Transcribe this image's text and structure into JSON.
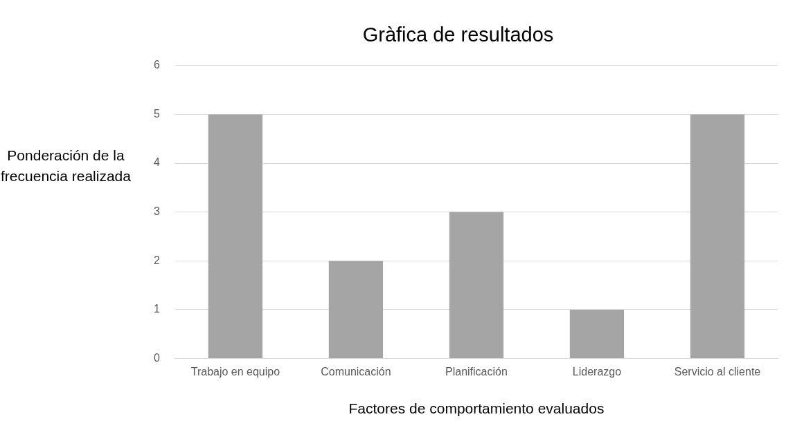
{
  "chart_data": {
    "type": "bar",
    "title": "Gràfica de resultados",
    "xlabel": "Factores de comportamiento evaluados",
    "ylabel": "Ponderación de la frecuencia realizada",
    "categories": [
      "Trabajo en equipo",
      "Comunicación",
      "Planificación",
      "Liderazgo",
      "Servicio al cliente"
    ],
    "values": [
      5,
      2,
      3,
      1,
      5
    ],
    "color": "#a5a5a5",
    "ylim": [
      0,
      6
    ],
    "yticks": [
      0,
      1,
      2,
      3,
      4,
      5,
      6
    ],
    "grid": "y",
    "legend": false
  }
}
